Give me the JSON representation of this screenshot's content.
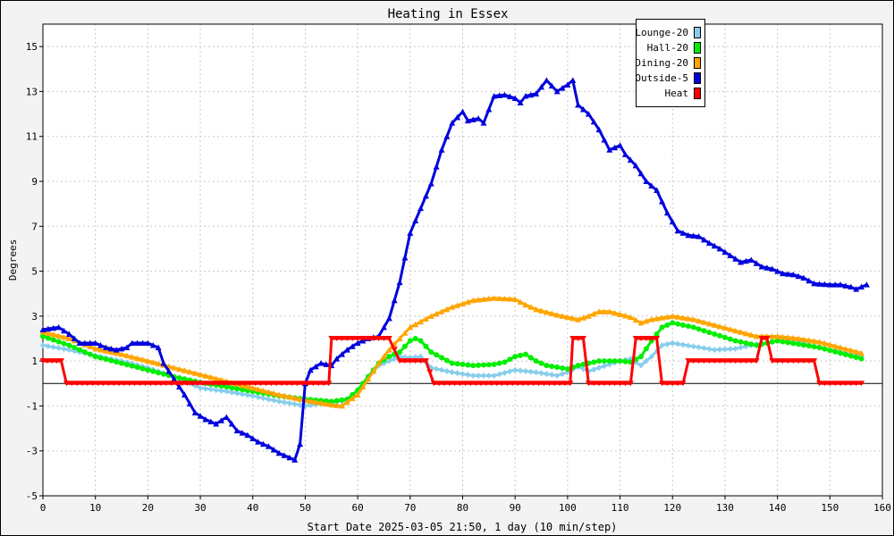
{
  "chart_data": {
    "type": "line",
    "title": "Heating in Essex",
    "xlabel": "Start Date 2025-03-05 21:50, 1 day (10 min/step)",
    "ylabel": "Degrees",
    "xlim": [
      0,
      160
    ],
    "ylim": [
      -5,
      16
    ],
    "xticks": [
      0,
      10,
      20,
      30,
      40,
      50,
      60,
      70,
      80,
      90,
      100,
      110,
      120,
      130,
      140,
      150,
      160
    ],
    "yticks": [
      -5,
      -3,
      -1,
      1,
      3,
      5,
      7,
      9,
      11,
      13,
      15
    ],
    "grid": true,
    "legend": "top-right",
    "series": [
      {
        "name": "Lounge-20",
        "color": "#87ceeb",
        "marker": "diamond",
        "points": [
          [
            0,
            1.7
          ],
          [
            5,
            1.5
          ],
          [
            10,
            1.25
          ],
          [
            15,
            1.0
          ],
          [
            20,
            0.7
          ],
          [
            25,
            0.3
          ],
          [
            30,
            -0.2
          ],
          [
            35,
            -0.35
          ],
          [
            40,
            -0.55
          ],
          [
            45,
            -0.8
          ],
          [
            50,
            -1.0
          ],
          [
            55,
            -0.85
          ],
          [
            58,
            -0.75
          ],
          [
            60,
            -0.3
          ],
          [
            62,
            0.3
          ],
          [
            64,
            0.8
          ],
          [
            66,
            1.0
          ],
          [
            68,
            1.2
          ],
          [
            70,
            1.15
          ],
          [
            72,
            1.2
          ],
          [
            74,
            0.7
          ],
          [
            78,
            0.5
          ],
          [
            82,
            0.35
          ],
          [
            86,
            0.35
          ],
          [
            90,
            0.6
          ],
          [
            94,
            0.5
          ],
          [
            98,
            0.35
          ],
          [
            100,
            0.5
          ],
          [
            102,
            0.75
          ],
          [
            104,
            0.55
          ],
          [
            106,
            0.7
          ],
          [
            110,
            1.0
          ],
          [
            112,
            1.1
          ],
          [
            114,
            0.8
          ],
          [
            116,
            1.2
          ],
          [
            118,
            1.7
          ],
          [
            120,
            1.8
          ],
          [
            124,
            1.65
          ],
          [
            128,
            1.5
          ],
          [
            132,
            1.55
          ],
          [
            136,
            1.75
          ],
          [
            140,
            1.9
          ],
          [
            144,
            1.85
          ],
          [
            148,
            1.6
          ],
          [
            152,
            1.4
          ],
          [
            156,
            1.2
          ]
        ]
      },
      {
        "name": "Hall-20",
        "color": "#00ee00",
        "marker": "circle",
        "points": [
          [
            0,
            2.1
          ],
          [
            5,
            1.7
          ],
          [
            10,
            1.2
          ],
          [
            15,
            0.9
          ],
          [
            20,
            0.6
          ],
          [
            25,
            0.3
          ],
          [
            30,
            0.05
          ],
          [
            35,
            -0.15
          ],
          [
            40,
            -0.35
          ],
          [
            45,
            -0.55
          ],
          [
            50,
            -0.7
          ],
          [
            55,
            -0.8
          ],
          [
            58,
            -0.7
          ],
          [
            60,
            -0.3
          ],
          [
            62,
            0.3
          ],
          [
            64,
            0.9
          ],
          [
            66,
            1.2
          ],
          [
            68,
            1.4
          ],
          [
            70,
            1.9
          ],
          [
            71,
            2.0
          ],
          [
            72,
            1.9
          ],
          [
            74,
            1.4
          ],
          [
            78,
            0.9
          ],
          [
            82,
            0.8
          ],
          [
            86,
            0.85
          ],
          [
            88,
            0.95
          ],
          [
            90,
            1.2
          ],
          [
            92,
            1.3
          ],
          [
            94,
            1.0
          ],
          [
            96,
            0.8
          ],
          [
            100,
            0.65
          ],
          [
            102,
            0.8
          ],
          [
            106,
            1.0
          ],
          [
            110,
            1.0
          ],
          [
            112,
            0.95
          ],
          [
            114,
            1.2
          ],
          [
            116,
            1.9
          ],
          [
            118,
            2.5
          ],
          [
            120,
            2.7
          ],
          [
            124,
            2.5
          ],
          [
            128,
            2.2
          ],
          [
            132,
            1.9
          ],
          [
            136,
            1.7
          ],
          [
            140,
            1.9
          ],
          [
            144,
            1.75
          ],
          [
            148,
            1.6
          ],
          [
            152,
            1.35
          ],
          [
            156,
            1.1
          ]
        ]
      },
      {
        "name": "Dining-20",
        "color": "#ffa500",
        "marker": "triangle-up",
        "points": [
          [
            0,
            2.3
          ],
          [
            5,
            2.0
          ],
          [
            10,
            1.55
          ],
          [
            15,
            1.3
          ],
          [
            20,
            1.0
          ],
          [
            25,
            0.7
          ],
          [
            30,
            0.4
          ],
          [
            35,
            0.1
          ],
          [
            40,
            -0.2
          ],
          [
            45,
            -0.5
          ],
          [
            50,
            -0.75
          ],
          [
            55,
            -0.95
          ],
          [
            57,
            -1.0
          ],
          [
            60,
            -0.5
          ],
          [
            62,
            0.2
          ],
          [
            64,
            0.9
          ],
          [
            66,
            1.5
          ],
          [
            68,
            2.0
          ],
          [
            70,
            2.5
          ],
          [
            74,
            3.0
          ],
          [
            78,
            3.4
          ],
          [
            82,
            3.7
          ],
          [
            86,
            3.8
          ],
          [
            90,
            3.75
          ],
          [
            92,
            3.5
          ],
          [
            94,
            3.3
          ],
          [
            98,
            3.05
          ],
          [
            100,
            2.95
          ],
          [
            102,
            2.85
          ],
          [
            104,
            3.0
          ],
          [
            106,
            3.2
          ],
          [
            108,
            3.2
          ],
          [
            112,
            2.95
          ],
          [
            114,
            2.7
          ],
          [
            116,
            2.85
          ],
          [
            120,
            3.0
          ],
          [
            124,
            2.85
          ],
          [
            128,
            2.6
          ],
          [
            132,
            2.35
          ],
          [
            136,
            2.1
          ],
          [
            140,
            2.1
          ],
          [
            144,
            2.0
          ],
          [
            148,
            1.85
          ],
          [
            152,
            1.6
          ],
          [
            156,
            1.35
          ]
        ]
      },
      {
        "name": "Outside-5",
        "color": "#0000dd",
        "marker": "triangle-up",
        "points": [
          [
            0,
            2.4
          ],
          [
            3,
            2.5
          ],
          [
            5,
            2.2
          ],
          [
            7,
            1.8
          ],
          [
            10,
            1.8
          ],
          [
            12,
            1.6
          ],
          [
            14,
            1.5
          ],
          [
            16,
            1.6
          ],
          [
            17,
            1.8
          ],
          [
            20,
            1.8
          ],
          [
            22,
            1.6
          ],
          [
            23,
            0.9
          ],
          [
            25,
            0.2
          ],
          [
            27,
            -0.5
          ],
          [
            29,
            -1.3
          ],
          [
            31,
            -1.6
          ],
          [
            33,
            -1.8
          ],
          [
            35,
            -1.5
          ],
          [
            37,
            -2.1
          ],
          [
            39,
            -2.3
          ],
          [
            41,
            -2.6
          ],
          [
            43,
            -2.8
          ],
          [
            45,
            -3.1
          ],
          [
            47,
            -3.3
          ],
          [
            48,
            -3.4
          ],
          [
            49,
            -2.7
          ],
          [
            50,
            0.0
          ],
          [
            51,
            0.6
          ],
          [
            53,
            0.9
          ],
          [
            55,
            0.8
          ],
          [
            56,
            1.1
          ],
          [
            58,
            1.5
          ],
          [
            60,
            1.8
          ],
          [
            62,
            2.0
          ],
          [
            64,
            2.1
          ],
          [
            66,
            2.9
          ],
          [
            68,
            4.5
          ],
          [
            70,
            6.7
          ],
          [
            72,
            7.8
          ],
          [
            74,
            8.9
          ],
          [
            76,
            10.4
          ],
          [
            78,
            11.6
          ],
          [
            80,
            12.1
          ],
          [
            81,
            11.7
          ],
          [
            83,
            11.8
          ],
          [
            84,
            11.6
          ],
          [
            85,
            12.2
          ],
          [
            86,
            12.8
          ],
          [
            88,
            12.85
          ],
          [
            90,
            12.7
          ],
          [
            91,
            12.5
          ],
          [
            92,
            12.8
          ],
          [
            94,
            12.9
          ],
          [
            96,
            13.5
          ],
          [
            98,
            13.0
          ],
          [
            100,
            13.3
          ],
          [
            101,
            13.5
          ],
          [
            102,
            12.4
          ],
          [
            104,
            12.0
          ],
          [
            106,
            11.3
          ],
          [
            108,
            10.4
          ],
          [
            110,
            10.6
          ],
          [
            111,
            10.2
          ],
          [
            113,
            9.7
          ],
          [
            115,
            9.0
          ],
          [
            117,
            8.6
          ],
          [
            119,
            7.6
          ],
          [
            121,
            6.8
          ],
          [
            123,
            6.6
          ],
          [
            125,
            6.55
          ],
          [
            127,
            6.25
          ],
          [
            129,
            6.0
          ],
          [
            131,
            5.7
          ],
          [
            133,
            5.4
          ],
          [
            135,
            5.5
          ],
          [
            137,
            5.2
          ],
          [
            139,
            5.1
          ],
          [
            141,
            4.9
          ],
          [
            143,
            4.85
          ],
          [
            145,
            4.7
          ],
          [
            147,
            4.45
          ],
          [
            150,
            4.4
          ],
          [
            152,
            4.4
          ],
          [
            154,
            4.3
          ],
          [
            155,
            4.2
          ],
          [
            157,
            4.4
          ]
        ]
      },
      {
        "name": "Heat",
        "color": "#ff0000",
        "marker": "triangle-down",
        "points": [
          [
            0,
            1
          ],
          [
            3.5,
            1
          ],
          [
            4.5,
            0
          ],
          [
            54.5,
            0
          ],
          [
            55,
            2
          ],
          [
            66,
            2
          ],
          [
            68,
            1
          ],
          [
            73,
            1
          ],
          [
            74.5,
            0
          ],
          [
            100.5,
            0
          ],
          [
            101,
            2
          ],
          [
            103,
            2
          ],
          [
            104,
            0
          ],
          [
            112,
            0
          ],
          [
            113,
            2
          ],
          [
            117,
            2
          ],
          [
            118,
            0
          ],
          [
            122,
            0
          ],
          [
            123,
            1
          ],
          [
            136,
            1
          ],
          [
            137,
            2
          ],
          [
            138,
            2
          ],
          [
            139,
            1
          ],
          [
            147,
            1
          ],
          [
            148,
            0
          ],
          [
            156,
            0
          ]
        ]
      }
    ]
  }
}
